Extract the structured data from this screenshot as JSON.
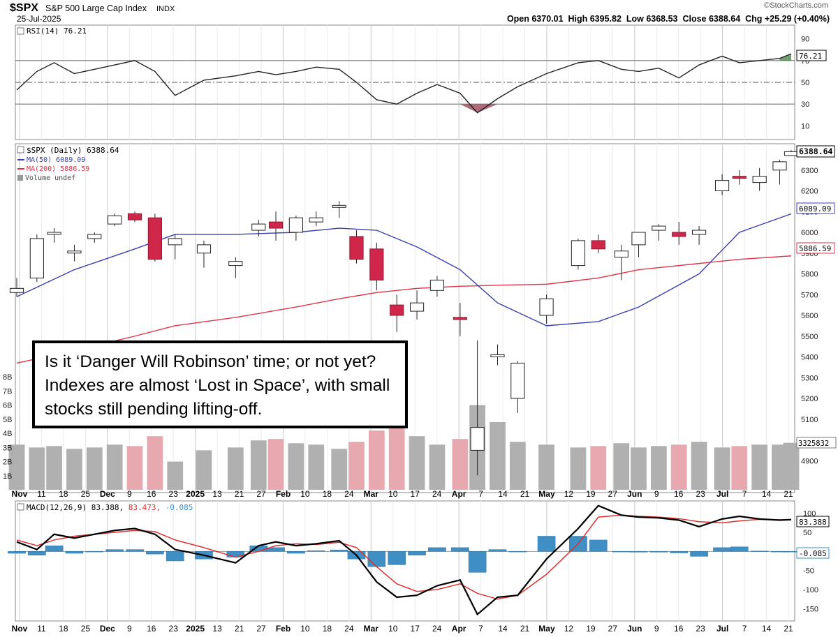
{
  "header": {
    "symbol": "$SPX",
    "name": "S&P 500 Large Cap Index",
    "exchange": "INDX",
    "date": "25-Jul-2025",
    "watermark": "©StockCharts.com",
    "ohlc_text": "Open 6370.01  High 6395.82  Low 6368.53  Close 6388.64  Chg +25.29 (+0.40%)"
  },
  "rsi_panel": {
    "legend": "RSI(14) 76.21",
    "value_tag": "76.21",
    "ticks": [
      "90",
      "70",
      "50",
      "30",
      "10"
    ]
  },
  "price_panel": {
    "legend_main": "$SPX (Daily) 6388.64",
    "legend_ma50": "MA(50) 6089.09",
    "legend_ma200": "MA(200) 5886.59",
    "legend_volume": "Volume undef",
    "tag_close": "6388.64",
    "tag_ma50": "6089.09",
    "tag_ma200": "5886.59",
    "tag_volume": "3325832",
    "price_ticks": [
      "6300",
      "6200",
      "6100",
      "6000",
      "5900",
      "5800",
      "5700",
      "5600",
      "5500",
      "5400",
      "5300",
      "5200",
      "5100",
      "4900"
    ],
    "volume_ticks": [
      "8B",
      "7B",
      "6B",
      "5B",
      "4B",
      "3B",
      "2B",
      "1B"
    ]
  },
  "macd_panel": {
    "legend_prefix": "MACD(12,26,9) 83.388,",
    "legend_signal": "83.473,",
    "legend_hist": "-0.085",
    "tag_macd": "83.388",
    "tag_hist": "-0.085",
    "ticks": [
      "100",
      "50",
      "-50",
      "-100",
      "-150"
    ]
  },
  "x_axis": {
    "labels": [
      "Nov",
      "11",
      "18",
      "25",
      "Dec",
      "9",
      "16",
      "23",
      "2025",
      "13",
      "21",
      "27",
      "Feb",
      "10",
      "18",
      "24",
      "Mar",
      "10",
      "17",
      "24",
      "Apr",
      "7",
      "14",
      "21",
      "May",
      "12",
      "19",
      "27",
      "Jun",
      "9",
      "16",
      "23",
      "Jul",
      "7",
      "14",
      "21"
    ],
    "bold_labels": [
      "Nov",
      "Dec",
      "2025",
      "Feb",
      "Mar",
      "Apr",
      "May",
      "Jun",
      "Jul"
    ]
  },
  "callout": {
    "text": "Is it ‘Danger Will Robinson’ time; or not yet? Indexes are almost ‘Lost in Space’, with small stocks still pending lifting-off."
  },
  "colors": {
    "up_candle": "#ffffff",
    "down_candle": "#d0264a",
    "ma50": "#3a3fb0",
    "ma200": "#e0334a",
    "volume_up": "#b0b0b0",
    "volume_down": "#e8a8b0",
    "macd_line": "#000000",
    "signal_line": "#e03030",
    "histogram": "#3f8fc4",
    "rsi_overbought_fill": "#4a8a4a",
    "rsi_oversold_fill": "#a05060"
  },
  "chart_data": [
    {
      "type": "line",
      "name": "RSI(14)",
      "ylim": [
        0,
        100
      ],
      "ref_levels": [
        70,
        50,
        30
      ],
      "x": [
        "2024-10-29",
        "2024-11-05",
        "2024-11-11",
        "2024-11-18",
        "2024-11-25",
        "2024-12-02",
        "2024-12-09",
        "2024-12-16",
        "2024-12-23",
        "2025-01-02",
        "2025-01-13",
        "2025-01-21",
        "2025-01-27",
        "2025-02-03",
        "2025-02-10",
        "2025-02-18",
        "2025-02-24",
        "2025-03-03",
        "2025-03-10",
        "2025-03-17",
        "2025-03-24",
        "2025-04-01",
        "2025-04-07",
        "2025-04-14",
        "2025-04-21",
        "2025-05-01",
        "2025-05-12",
        "2025-05-19",
        "2025-05-27",
        "2025-06-02",
        "2025-06-09",
        "2025-06-16",
        "2025-06-23",
        "2025-07-01",
        "2025-07-07",
        "2025-07-14",
        "2025-07-21",
        "2025-07-25"
      ],
      "y": [
        43,
        60,
        68,
        58,
        62,
        66,
        70,
        60,
        38,
        52,
        56,
        60,
        57,
        60,
        64,
        62,
        50,
        34,
        30,
        40,
        48,
        40,
        22,
        35,
        46,
        58,
        68,
        70,
        62,
        60,
        63,
        54,
        66,
        74,
        68,
        70,
        72,
        76.21
      ]
    },
    {
      "type": "bar",
      "name": "$SPX (Daily) candlesticks",
      "title": "$SPX S&P 500 Large Cap Index INDX",
      "ylim": [
        4800,
        6400
      ],
      "x": [
        "2024-10-29",
        "2024-11-05",
        "2024-11-11",
        "2024-11-18",
        "2024-11-25",
        "2024-12-02",
        "2024-12-09",
        "2024-12-16",
        "2024-12-23",
        "2025-01-02",
        "2025-01-13",
        "2025-01-21",
        "2025-01-27",
        "2025-02-03",
        "2025-02-10",
        "2025-02-18",
        "2025-02-24",
        "2025-03-03",
        "2025-03-10",
        "2025-03-17",
        "2025-03-24",
        "2025-04-01",
        "2025-04-07",
        "2025-04-14",
        "2025-04-21",
        "2025-05-01",
        "2025-05-12",
        "2025-05-19",
        "2025-05-27",
        "2025-06-02",
        "2025-06-09",
        "2025-06-16",
        "2025-06-23",
        "2025-07-01",
        "2025-07-07",
        "2025-07-14",
        "2025-07-21",
        "2025-07-25"
      ],
      "series": [
        {
          "name": "Open",
          "values": [
            5710,
            5780,
            5990,
            5900,
            5970,
            6040,
            6090,
            6070,
            5940,
            5900,
            5840,
            6010,
            6050,
            6000,
            6050,
            6120,
            5980,
            5920,
            5650,
            5620,
            5720,
            5590,
            4950,
            5400,
            5200,
            5600,
            5840,
            5960,
            5880,
            5940,
            6010,
            6000,
            5990,
            6200,
            6270,
            6240,
            6300,
            6370.01
          ]
        },
        {
          "name": "High",
          "values": [
            5780,
            5990,
            6020,
            5940,
            6000,
            6090,
            6100,
            6090,
            5990,
            5960,
            5880,
            6060,
            6100,
            6080,
            6100,
            6150,
            6010,
            5950,
            5700,
            5720,
            5790,
            5660,
            5480,
            5460,
            5380,
            5700,
            5970,
            5990,
            5940,
            5990,
            6040,
            6050,
            6030,
            6280,
            6300,
            6310,
            6350,
            6395.82
          ]
        },
        {
          "name": "Low",
          "values": [
            5690,
            5760,
            5950,
            5860,
            5950,
            6030,
            6050,
            5860,
            5870,
            5830,
            5780,
            5980,
            5960,
            5960,
            6030,
            6070,
            5850,
            5720,
            5520,
            5580,
            5690,
            5500,
            4830,
            5360,
            5130,
            5560,
            5820,
            5900,
            5770,
            5880,
            5960,
            5940,
            5940,
            6180,
            6230,
            6200,
            6230,
            6368.53
          ]
        },
        {
          "name": "Close",
          "values": [
            5730,
            5970,
            6000,
            5910,
            5990,
            6080,
            6060,
            5870,
            5970,
            5940,
            5860,
            6040,
            6020,
            6070,
            6070,
            6130,
            5870,
            5770,
            5600,
            5660,
            5770,
            5580,
            5060,
            5410,
            5370,
            5680,
            5960,
            5920,
            5910,
            6000,
            6030,
            5980,
            6010,
            6250,
            6260,
            6270,
            6340,
            6388.64
          ]
        }
      ]
    },
    {
      "type": "line",
      "name": "Moving averages",
      "ylim": [
        4800,
        6400
      ],
      "x": [
        "2024-10-29",
        "2024-11-18",
        "2024-12-09",
        "2024-12-23",
        "2025-01-13",
        "2025-02-03",
        "2025-02-18",
        "2025-03-03",
        "2025-03-17",
        "2025-04-01",
        "2025-04-14",
        "2025-05-01",
        "2025-05-19",
        "2025-06-02",
        "2025-06-23",
        "2025-07-07",
        "2025-07-25"
      ],
      "series": [
        {
          "name": "MA(50)",
          "values": [
            5690,
            5820,
            5920,
            5990,
            5990,
            6000,
            6020,
            6010,
            5930,
            5820,
            5660,
            5550,
            5570,
            5640,
            5800,
            6000,
            6089.09
          ]
        },
        {
          "name": "MA(200)",
          "values": [
            5370,
            5430,
            5500,
            5550,
            5590,
            5640,
            5680,
            5710,
            5730,
            5740,
            5745,
            5750,
            5780,
            5820,
            5850,
            5870,
            5886.59
          ]
        }
      ]
    },
    {
      "type": "bar",
      "name": "Volume",
      "ylim": [
        0,
        9
      ],
      "ylabel": "B",
      "x": [
        "2024-10-29",
        "2024-11-05",
        "2024-11-11",
        "2024-11-18",
        "2024-11-25",
        "2024-12-02",
        "2024-12-09",
        "2024-12-16",
        "2024-12-23",
        "2025-01-02",
        "2025-01-13",
        "2025-01-21",
        "2025-01-27",
        "2025-02-03",
        "2025-02-10",
        "2025-02-18",
        "2025-02-24",
        "2025-03-03",
        "2025-03-10",
        "2025-03-17",
        "2025-03-24",
        "2025-04-01",
        "2025-04-07",
        "2025-04-14",
        "2025-04-21",
        "2025-05-01",
        "2025-05-12",
        "2025-05-19",
        "2025-05-27",
        "2025-06-02",
        "2025-06-09",
        "2025-06-16",
        "2025-06-23",
        "2025-07-01",
        "2025-07-07",
        "2025-07-14",
        "2025-07-21",
        "2025-07-25"
      ],
      "values": [
        3.2,
        3.0,
        3.1,
        2.9,
        3.0,
        3.2,
        3.1,
        3.8,
        2.0,
        2.8,
        3.0,
        3.5,
        3.6,
        3.3,
        3.2,
        2.9,
        3.4,
        4.2,
        4.4,
        3.8,
        3.2,
        3.6,
        6.0,
        4.8,
        3.4,
        3.2,
        3.0,
        3.1,
        3.3,
        3.0,
        3.1,
        3.2,
        3.4,
        3.0,
        3.1,
        3.2,
        3.2,
        3.33
      ]
    },
    {
      "type": "line",
      "name": "MACD(12,26,9)",
      "ylim": [
        -175,
        125
      ],
      "x": [
        "2024-10-29",
        "2024-11-05",
        "2024-11-11",
        "2024-11-18",
        "2024-11-25",
        "2024-12-02",
        "2024-12-09",
        "2024-12-16",
        "2024-12-23",
        "2025-01-02",
        "2025-01-13",
        "2025-01-21",
        "2025-01-27",
        "2025-02-03",
        "2025-02-10",
        "2025-02-18",
        "2025-02-24",
        "2025-03-03",
        "2025-03-10",
        "2025-03-17",
        "2025-03-24",
        "2025-04-01",
        "2025-04-07",
        "2025-04-14",
        "2025-04-21",
        "2025-05-01",
        "2025-05-12",
        "2025-05-19",
        "2025-05-27",
        "2025-06-02",
        "2025-06-09",
        "2025-06-16",
        "2025-06-23",
        "2025-07-01",
        "2025-07-07",
        "2025-07-14",
        "2025-07-21",
        "2025-07-25"
      ],
      "series": [
        {
          "name": "MACD",
          "values": [
            25,
            5,
            45,
            35,
            45,
            55,
            60,
            45,
            5,
            -10,
            -30,
            15,
            25,
            15,
            20,
            28,
            -10,
            -80,
            -120,
            -115,
            -90,
            -75,
            -165,
            -120,
            -115,
            -20,
            60,
            120,
            95,
            90,
            88,
            82,
            65,
            85,
            92,
            85,
            82,
            83.388
          ]
        },
        {
          "name": "Signal",
          "values": [
            30,
            15,
            30,
            40,
            45,
            50,
            55,
            52,
            30,
            10,
            -15,
            0,
            15,
            20,
            18,
            24,
            10,
            -40,
            -85,
            -105,
            -100,
            -85,
            -110,
            -125,
            -115,
            -60,
            20,
            90,
            95,
            92,
            90,
            86,
            78,
            75,
            80,
            84,
            83,
            83.473
          ]
        },
        {
          "name": "Histogram",
          "values": [
            -5,
            -10,
            15,
            -5,
            0,
            5,
            5,
            -7,
            -25,
            -20,
            -15,
            15,
            10,
            -5,
            2,
            4,
            -20,
            -40,
            -35,
            -10,
            10,
            10,
            -55,
            5,
            0,
            40,
            40,
            30,
            0,
            -2,
            -2,
            -4,
            -13,
            10,
            12,
            1,
            -1,
            -0.085
          ]
        }
      ]
    }
  ]
}
